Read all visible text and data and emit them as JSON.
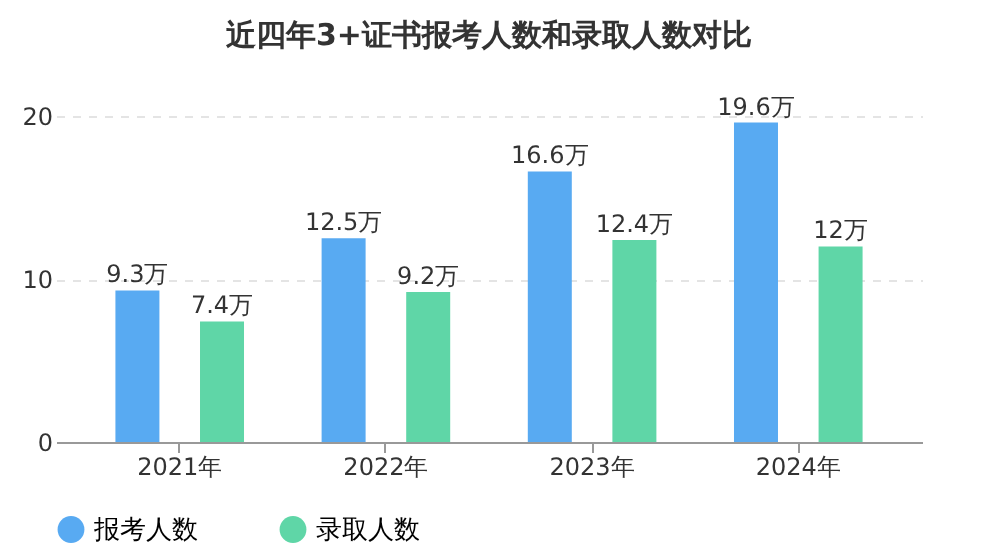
{
  "chart_data": {
    "type": "bar",
    "title": "近四年3+证书报考人数和录取人数对比",
    "categories": [
      "2021年",
      "2022年",
      "2023年",
      "2024年"
    ],
    "series": [
      {
        "name": "报考人数",
        "color": "#58aaf2",
        "values": [
          9.3,
          12.5,
          16.6,
          19.6
        ],
        "value_labels": [
          "9.3万",
          "12.5万",
          "16.6万",
          "19.6万"
        ]
      },
      {
        "name": "录取人数",
        "color": "#5fd6a7",
        "values": [
          7.4,
          9.2,
          12.4,
          12
        ],
        "value_labels": [
          "7.4万",
          "9.2万",
          "12.4万",
          "12万"
        ]
      }
    ],
    "ylim": [
      0,
      20
    ],
    "yticks": [
      0,
      10,
      20
    ],
    "grid": "y",
    "legend": "bottom"
  }
}
